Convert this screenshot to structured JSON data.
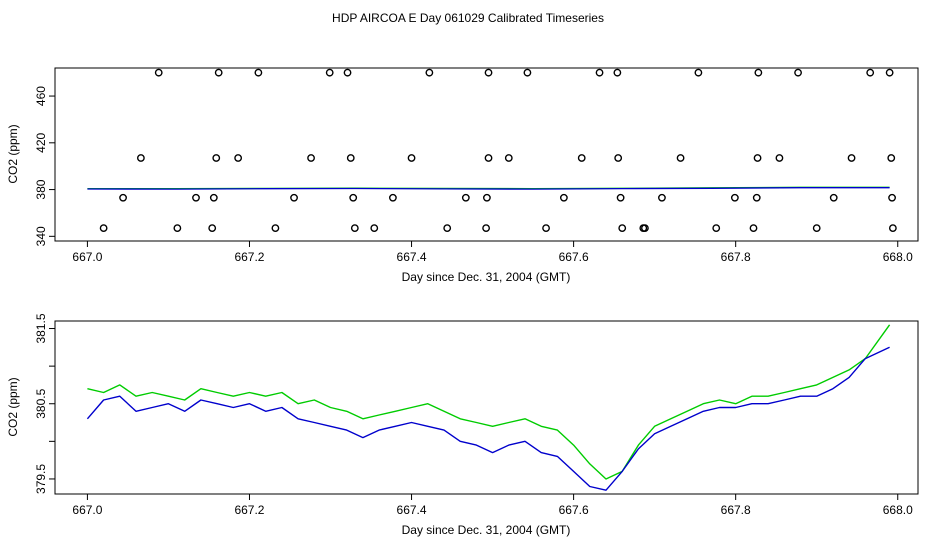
{
  "page_title": "HDP AIRCOA E  Day 061029  Calibrated Timeseries",
  "colors": {
    "line_a": "#00cc00",
    "line_b": "#0000cc",
    "axes": "#000000"
  },
  "chart_data": [
    {
      "type": "scatter",
      "title": "",
      "xlabel": "Day since Dec. 31, 2004 (GMT)",
      "ylabel": "CO2 (ppm)",
      "xlim": [
        666.96,
        668.025
      ],
      "ylim": [
        336,
        484
      ],
      "x_ticks": [
        667.0,
        667.2,
        667.4,
        667.6,
        667.8,
        668.0
      ],
      "x_tick_labels": [
        "667.0",
        "667.2",
        "667.4",
        "667.6",
        "667.8",
        "668.0"
      ],
      "y_ticks": [
        340,
        380,
        420,
        460
      ],
      "y_tick_labels": [
        "340",
        "380",
        "420",
        "460"
      ],
      "grid": false,
      "points": {
        "x": [
          667.088,
          667.162,
          667.211,
          667.299,
          667.321,
          667.422,
          667.495,
          667.543,
          667.632,
          667.654,
          667.754,
          667.828,
          667.877,
          667.966,
          667.99,
          667.066,
          667.159,
          667.186,
          667.276,
          667.325,
          667.4,
          667.495,
          667.52,
          667.61,
          667.655,
          667.732,
          667.827,
          667.854,
          667.943,
          667.992,
          667.044,
          667.134,
          667.156,
          667.255,
          667.328,
          667.377,
          667.467,
          667.493,
          667.588,
          667.658,
          667.709,
          667.799,
          667.826,
          667.921,
          667.993,
          667.02,
          667.111,
          667.154,
          667.232,
          667.33,
          667.354,
          667.444,
          667.492,
          667.566,
          667.66,
          667.686,
          667.688,
          667.776,
          667.822,
          667.9,
          667.994
        ],
        "y": [
          480,
          480,
          480,
          480,
          480,
          480,
          480,
          480,
          480,
          480,
          480,
          480,
          480,
          480,
          480,
          407,
          407,
          407,
          407,
          407,
          407,
          407,
          407,
          407,
          407,
          407,
          407,
          407,
          407,
          407,
          373,
          373,
          373,
          373,
          373,
          373,
          373,
          373,
          373,
          373,
          373,
          373,
          373,
          373,
          373,
          347,
          347,
          347,
          347,
          347,
          347,
          347,
          347,
          347,
          347,
          347,
          347,
          347,
          347,
          347,
          347
        ]
      },
      "series": [
        {
          "values_start": 667.0,
          "values_end": 667.99,
          "y": [
            380.8,
            380.7,
            381.0,
            381.2,
            381.0,
            380.8,
            381.1,
            381.5,
            381.9,
            381.9
          ]
        },
        {
          "values_start": 667.0,
          "values_end": 667.99,
          "y": [
            380.5,
            380.4,
            380.7,
            380.9,
            380.6,
            380.4,
            380.8,
            381.1,
            381.6,
            381.6
          ]
        }
      ]
    },
    {
      "type": "line",
      "title": "",
      "xlabel": "Day since Dec. 31, 2004 (GMT)",
      "ylabel": "CO2 (ppm)",
      "xlim": [
        666.96,
        668.025
      ],
      "ylim": [
        379.3,
        381.6
      ],
      "x_ticks": [
        667.0,
        667.2,
        667.4,
        667.6,
        667.8,
        668.0
      ],
      "x_tick_labels": [
        "667.0",
        "667.2",
        "667.4",
        "667.6",
        "667.8",
        "668.0"
      ],
      "y_ticks": [
        379.5,
        380.0,
        380.5,
        381.0,
        381.5
      ],
      "y_tick_labels": [
        "379.5",
        "",
        "380.5",
        "",
        "381.5"
      ],
      "grid": false,
      "series": [
        {
          "color": "#00cc00",
          "x": [
            667.0,
            667.02,
            667.04,
            667.06,
            667.08,
            667.1,
            667.12,
            667.14,
            667.16,
            667.18,
            667.2,
            667.22,
            667.24,
            667.26,
            667.28,
            667.3,
            667.32,
            667.34,
            667.36,
            667.38,
            667.4,
            667.42,
            667.44,
            667.46,
            667.48,
            667.5,
            667.52,
            667.54,
            667.56,
            667.58,
            667.6,
            667.62,
            667.64,
            667.66,
            667.68,
            667.7,
            667.72,
            667.74,
            667.76,
            667.78,
            667.8,
            667.82,
            667.84,
            667.86,
            667.88,
            667.9,
            667.92,
            667.94,
            667.96,
            667.99
          ],
          "y": [
            380.7,
            380.65,
            380.75,
            380.6,
            380.65,
            380.6,
            380.55,
            380.7,
            380.65,
            380.6,
            380.65,
            380.6,
            380.65,
            380.5,
            380.55,
            380.45,
            380.4,
            380.3,
            380.35,
            380.4,
            380.45,
            380.5,
            380.4,
            380.3,
            380.25,
            380.2,
            380.25,
            380.3,
            380.2,
            380.15,
            379.95,
            379.7,
            379.5,
            379.6,
            379.95,
            380.2,
            380.3,
            380.4,
            380.5,
            380.55,
            380.5,
            380.6,
            380.6,
            380.65,
            380.7,
            380.75,
            380.85,
            380.95,
            381.1,
            381.55
          ]
        },
        {
          "color": "#0000cc",
          "x": [
            667.0,
            667.02,
            667.04,
            667.06,
            667.08,
            667.1,
            667.12,
            667.14,
            667.16,
            667.18,
            667.2,
            667.22,
            667.24,
            667.26,
            667.28,
            667.3,
            667.32,
            667.34,
            667.36,
            667.38,
            667.4,
            667.42,
            667.44,
            667.46,
            667.48,
            667.5,
            667.52,
            667.54,
            667.56,
            667.58,
            667.6,
            667.62,
            667.64,
            667.66,
            667.68,
            667.7,
            667.72,
            667.74,
            667.76,
            667.78,
            667.8,
            667.82,
            667.84,
            667.86,
            667.88,
            667.9,
            667.92,
            667.94,
            667.96,
            667.99
          ],
          "y": [
            380.3,
            380.55,
            380.6,
            380.4,
            380.45,
            380.5,
            380.4,
            380.55,
            380.5,
            380.45,
            380.5,
            380.4,
            380.45,
            380.3,
            380.25,
            380.2,
            380.15,
            380.05,
            380.15,
            380.2,
            380.25,
            380.2,
            380.15,
            380.0,
            379.95,
            379.85,
            379.95,
            380.0,
            379.85,
            379.8,
            379.6,
            379.4,
            379.35,
            379.6,
            379.9,
            380.1,
            380.2,
            380.3,
            380.4,
            380.45,
            380.45,
            380.5,
            380.5,
            380.55,
            380.6,
            380.6,
            380.7,
            380.85,
            381.1,
            381.25
          ]
        }
      ]
    }
  ]
}
